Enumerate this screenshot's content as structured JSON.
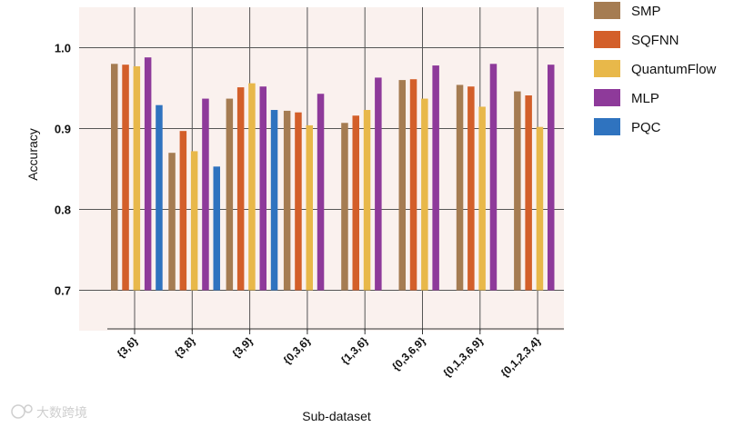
{
  "chart_data": {
    "type": "bar",
    "title": "",
    "xlabel": "Sub-dataset",
    "ylabel": "Accuracy",
    "ylim": [
      0.65,
      1.05
    ],
    "yticks": [
      "0.7",
      "0.8",
      "0.9",
      "1.0"
    ],
    "grid": true,
    "legend_position": "right",
    "categories": [
      "{3,6}",
      "{3,8}",
      "{3,9}",
      "{0,3,6}",
      "{1,3,6}",
      "{0,3,6,9}",
      "{0,1,3,6,9}",
      "{0,1,2,3,4}"
    ],
    "series": [
      {
        "name": "SMP",
        "color": "#a57c52",
        "values": [
          0.98,
          0.87,
          0.937,
          0.922,
          0.907,
          0.96,
          0.954,
          0.946
        ]
      },
      {
        "name": "SQFNN",
        "color": "#d35f2a",
        "values": [
          0.979,
          0.897,
          0.951,
          0.92,
          0.916,
          0.961,
          0.952,
          0.941
        ]
      },
      {
        "name": "QuantumFlow",
        "color": "#e8b84a",
        "values": [
          0.977,
          0.872,
          0.956,
          0.904,
          0.923,
          0.937,
          0.927,
          0.902
        ]
      },
      {
        "name": "MLP",
        "color": "#8e3a9a",
        "values": [
          0.988,
          0.937,
          0.952,
          0.943,
          0.963,
          0.978,
          0.98,
          0.979
        ]
      },
      {
        "name": "PQC",
        "color": "#2f73bf",
        "values": [
          0.929,
          0.853,
          0.923,
          null,
          null,
          null,
          null,
          null
        ]
      }
    ],
    "colors": {
      "plot_background": "#faf1ee",
      "grid": "#555555"
    }
  },
  "watermark": "大数跨境"
}
